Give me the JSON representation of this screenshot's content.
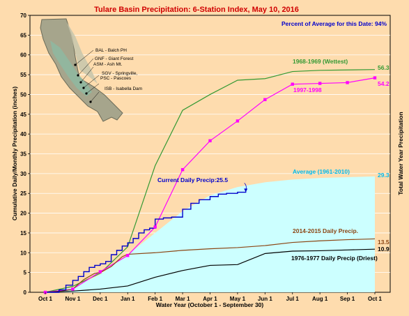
{
  "chart_data": {
    "type": "line",
    "title": "Tulare Basin Precipitation: 6-Station Index, May 10, 2016",
    "xlabel": "Water Year (October 1 - September 30)",
    "ylabel": "Cumulative Daily/Monthly Precipitation (inches)",
    "ylabel_right": "Total Water Year Precipitation",
    "ylim": [
      0,
      70
    ],
    "yticks": [
      0,
      5,
      10,
      15,
      20,
      25,
      30,
      35,
      40,
      45,
      50,
      55,
      60,
      65,
      70
    ],
    "categories": [
      "Oct 1",
      "Nov 1",
      "Dec 1",
      "Jan 1",
      "Feb 1",
      "Mar 1",
      "Apr 1",
      "May 1",
      "Jun 1",
      "Jul 1",
      "Aug 1",
      "Sep 1",
      "Oct 1"
    ],
    "percent_note": "Percent of Average for this Date: 94%",
    "series": [
      {
        "name": "Average (1961-2010)",
        "color": "#ccffff",
        "style": "area",
        "x": [
          0,
          1,
          2,
          3,
          4,
          5,
          6,
          7,
          8,
          9,
          10,
          11,
          12
        ],
        "y": [
          0,
          1.2,
          4.5,
          9.5,
          15.0,
          20.5,
          24.5,
          26.6,
          27.8,
          28.5,
          28.9,
          29.1,
          29.3
        ]
      },
      {
        "name": "1968-1969 (Wettest)",
        "color": "#339933",
        "style": "line",
        "x": [
          0,
          1,
          2,
          3,
          4,
          5,
          6,
          7,
          8,
          9,
          10,
          11,
          12
        ],
        "y": [
          0,
          1.5,
          4.8,
          11.5,
          32.0,
          46.0,
          50.0,
          53.6,
          54.0,
          55.8,
          56.1,
          56.2,
          56.3
        ]
      },
      {
        "name": "1997-1998",
        "color": "#ff00ff",
        "style": "line-markers",
        "x": [
          0,
          1,
          2,
          3,
          4,
          5,
          6,
          7,
          8,
          9,
          10,
          11,
          12
        ],
        "y": [
          0,
          0.8,
          5.2,
          9.3,
          16.5,
          31.0,
          38.3,
          43.3,
          48.7,
          52.6,
          52.8,
          53.0,
          54.2
        ]
      },
      {
        "name": "2014-2015 Daily Precip.",
        "color": "#8b4513",
        "style": "line",
        "x": [
          0,
          0.6,
          1,
          1.4,
          1.8,
          2,
          2.4,
          2.8,
          3,
          4,
          5,
          6,
          7,
          8,
          9,
          10,
          11,
          12
        ],
        "y": [
          0,
          0.3,
          0.8,
          3.2,
          4.8,
          5.0,
          6.5,
          9.0,
          9.6,
          10.0,
          10.6,
          11.0,
          11.3,
          11.8,
          12.6,
          13.0,
          13.3,
          13.5
        ]
      },
      {
        "name": "1976-1977 Daily Precip (Driest)",
        "color": "#000000",
        "style": "line",
        "x": [
          0,
          1,
          2,
          3,
          4,
          5,
          6,
          7,
          8,
          9,
          10,
          11,
          12
        ],
        "y": [
          0,
          0.3,
          0.8,
          1.6,
          3.8,
          5.5,
          6.8,
          7.0,
          9.8,
          10.4,
          10.5,
          10.7,
          10.9
        ]
      },
      {
        "name": "Current Daily Precip:25.5",
        "color": "#0000cc",
        "style": "step",
        "x": [
          0,
          0.5,
          0.75,
          1,
          1.2,
          1.4,
          1.6,
          1.8,
          2,
          2.2,
          2.4,
          2.6,
          2.8,
          3,
          3.2,
          3.4,
          3.6,
          3.8,
          4,
          4.3,
          4.6,
          5,
          5.3,
          5.6,
          6,
          6.3,
          6.6,
          7,
          7.3
        ],
        "y": [
          0,
          0.6,
          1.8,
          3.0,
          4.0,
          5.2,
          6.3,
          6.8,
          7.2,
          7.8,
          9.5,
          10.6,
          11.7,
          12.5,
          13.6,
          15.0,
          15.8,
          16.2,
          18.5,
          18.8,
          19.0,
          21.0,
          22.5,
          23.4,
          24.2,
          24.8,
          25.0,
          25.3,
          25.5
        ]
      }
    ],
    "end_labels": [
      {
        "text": "56.3",
        "value": 56.3,
        "color": "#339933"
      },
      {
        "text": "54.2",
        "value": 54.2,
        "color": "#ff00ff"
      },
      {
        "text": "29.3",
        "value": 29.3,
        "color": "#00bbee"
      },
      {
        "text": "13.5",
        "value": 13.5,
        "color": "#8b4513"
      },
      {
        "text": "10.9",
        "value": 10.9,
        "color": "#000000"
      }
    ],
    "stations": [
      "BAL - Balch PH",
      "GNF - Giant Forest",
      "ASM - Ash Mt.",
      "SGV - Springville,",
      "PSC - Pascoes",
      "ISB - Isabella Dam"
    ]
  },
  "colors": {
    "background": "#fedcae",
    "plot_border": "#000000",
    "grid": "#ffffff"
  }
}
